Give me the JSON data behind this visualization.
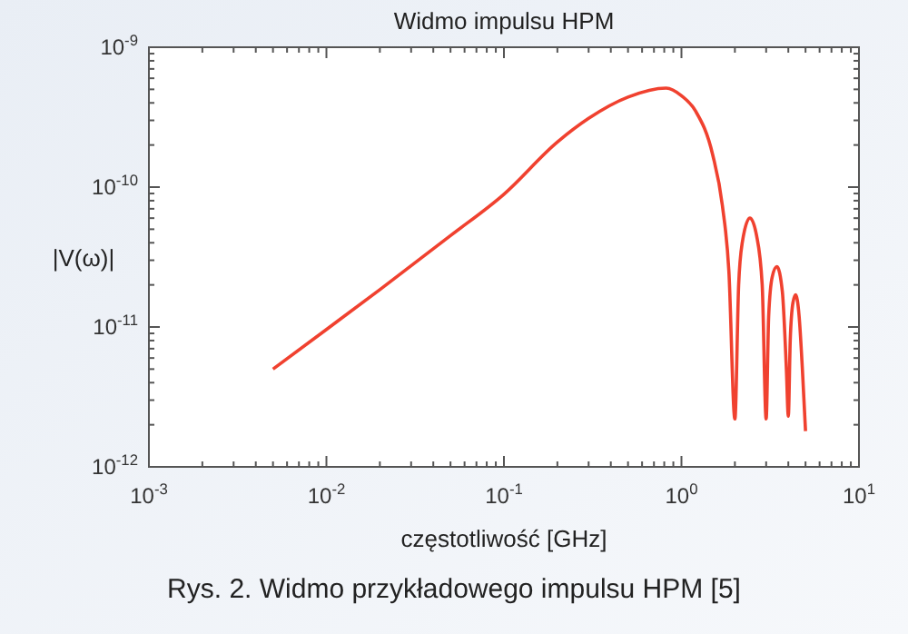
{
  "chart_data": {
    "type": "line",
    "title": "Widmo impulsu HPM",
    "xlabel": "częstotliwość [GHz]",
    "ylabel": "|V(ω)|",
    "log": "xy",
    "grid": false,
    "marker": "none",
    "line_style": "solid",
    "xlim": [
      0.001,
      10
    ],
    "ylim": [
      1e-12,
      1e-09
    ],
    "xticks": [
      {
        "value": 0.001,
        "label": "10$^{-3}$"
      },
      {
        "value": 0.01,
        "label": "10$^{-2}$"
      },
      {
        "value": 0.1,
        "label": "10$^{-1}$"
      },
      {
        "value": 1,
        "label": "10$^{0}$"
      },
      {
        "value": 10,
        "label": "10$^{1}$"
      }
    ],
    "yticks": [
      {
        "value": 1e-12,
        "label": "10$^{-12}$"
      },
      {
        "value": 1e-11,
        "label": "10$^{-11}$"
      },
      {
        "value": 1e-10,
        "label": "10$^{-10}$"
      },
      {
        "value": 1e-09,
        "label": "10$^{-9}$"
      }
    ],
    "series": [
      {
        "color": "#f0412f",
        "x": [
          0.005,
          0.01,
          0.02,
          0.05,
          0.1,
          0.2,
          0.3,
          0.5,
          0.82,
          1.0,
          1.2,
          1.5,
          1.7,
          1.85,
          2.0,
          2.1,
          2.2,
          2.43,
          2.65,
          2.85,
          3.0,
          3.1,
          3.25,
          3.45,
          3.7,
          3.9,
          4.0,
          4.1,
          4.25,
          4.4,
          4.6,
          4.8,
          5.0
        ],
        "values": [
          5e-12,
          9.6e-12,
          1.85e-11,
          4.5e-11,
          8.9e-11,
          2.1e-10,
          3.1e-10,
          4.4e-10,
          5.1e-10,
          4.5e-10,
          3.5e-10,
          1.7e-10,
          7.4e-11,
          2.5e-11,
          2.2e-12,
          2e-11,
          4e-11,
          6e-11,
          4.5e-11,
          2e-11,
          2.2e-12,
          1.2e-11,
          2.3e-11,
          2.7e-11,
          1.8e-11,
          5e-12,
          2.3e-12,
          8e-12,
          1.5e-11,
          1.7e-11,
          1.2e-11,
          5e-12,
          1.8e-12
        ]
      }
    ],
    "annotations": [
      "Rys. 2. Widmo przykładowego impulsu HPM [5]"
    ]
  }
}
